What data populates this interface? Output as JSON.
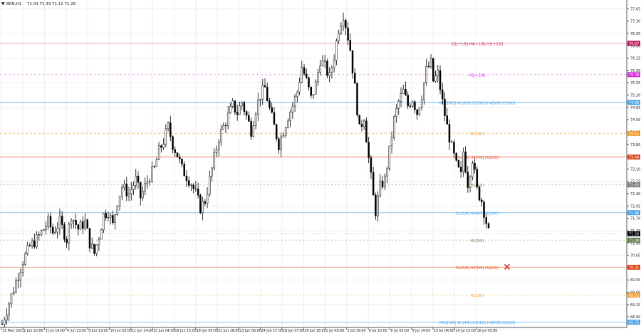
{
  "header": {
    "symbol_menu_glyph": "▼",
    "symbol_timeframe": "BRN,H1",
    "ohlc": "71.04 71.33 71.12 71.26"
  },
  "chart_data": {
    "type": "candlestick",
    "y_axis": {
      "min": 68.6,
      "max": 77.9,
      "ticks": [
        77.65,
        76.95,
        76.25,
        75.55,
        74.85,
        74.15,
        73.45,
        72.75,
        72.05,
        71.35,
        70.65,
        69.95,
        69.25,
        68.55
      ],
      "tick_labels": [
        "77.65",
        "76.95",
        "76.25",
        "75.55",
        "74.85",
        "74.15",
        "73.45",
        "72.75",
        "72.05",
        "71.35",
        "70.65",
        "69.95",
        "69.25",
        "68.55"
      ],
      "also_labels": [
        "77.30",
        "76.60",
        "75.90",
        "75.20",
        "74.50",
        "73.80",
        "73.10",
        "72.40",
        "71.70",
        "71.00",
        "70.30",
        "69.60",
        "68.90"
      ]
    },
    "x_axis": {
      "tick_labels": [
        "31 May 2021",
        "1 Jun 22:00",
        "3 Jun 14:00",
        "4 Jun 23:00",
        "8 Jun 13:00",
        "10 Jun 03:00",
        "11 Jun 14:00",
        "15 Jun 04:00",
        "16 Jun 15:00",
        "18 Jun 05:00",
        "21 Jun 16:00",
        "23 Jun 06:00",
        "24 Jun 17:00",
        "28 Jun 07:00",
        "29 Jun 18:00",
        "1 Jul 08:00",
        "2 Jul 19:00",
        "6 Jul 13:00",
        "8 Jul 03:00",
        "9 Jul 14:00",
        "13 Jul 04:00",
        "14 Jul 15:00",
        "16 Jul 05:00"
      ]
    },
    "price_path": [
      [
        0,
        68.7
      ],
      [
        3,
        69.3
      ],
      [
        6,
        69.9
      ],
      [
        9,
        70.5
      ],
      [
        12,
        70.9
      ],
      [
        15,
        71.1
      ],
      [
        18,
        71.4
      ],
      [
        20,
        71.6
      ],
      [
        22,
        71.3
      ],
      [
        25,
        71.6
      ],
      [
        28,
        71.1
      ],
      [
        30,
        71.8
      ],
      [
        33,
        71.4
      ],
      [
        36,
        71.6
      ],
      [
        38,
        71.0
      ],
      [
        40,
        70.7
      ],
      [
        42,
        71.2
      ],
      [
        44,
        71.8
      ],
      [
        46,
        71.9
      ],
      [
        48,
        71.5
      ],
      [
        50,
        72.2
      ],
      [
        52,
        72.6
      ],
      [
        55,
        72.4
      ],
      [
        58,
        72.8
      ],
      [
        60,
        72.3
      ],
      [
        62,
        72.6
      ],
      [
        64,
        72.9
      ],
      [
        66,
        73.1
      ],
      [
        68,
        73.6
      ],
      [
        70,
        73.9
      ],
      [
        72,
        74.3
      ],
      [
        74,
        73.8
      ],
      [
        76,
        73.5
      ],
      [
        78,
        73.1
      ],
      [
        80,
        72.9
      ],
      [
        82,
        72.7
      ],
      [
        84,
        72.4
      ],
      [
        86,
        72.0
      ],
      [
        88,
        72.2
      ],
      [
        90,
        72.8
      ],
      [
        92,
        73.4
      ],
      [
        94,
        74.0
      ],
      [
        96,
        74.3
      ],
      [
        98,
        74.6
      ],
      [
        100,
        74.9
      ],
      [
        102,
        74.7
      ],
      [
        104,
        75.0
      ],
      [
        106,
        74.6
      ],
      [
        108,
        74.2
      ],
      [
        110,
        74.8
      ],
      [
        112,
        75.2
      ],
      [
        114,
        75.4
      ],
      [
        116,
        74.8
      ],
      [
        118,
        74.3
      ],
      [
        120,
        73.8
      ],
      [
        122,
        74.2
      ],
      [
        124,
        74.6
      ],
      [
        126,
        74.9
      ],
      [
        128,
        75.3
      ],
      [
        130,
        76.0
      ],
      [
        132,
        75.6
      ],
      [
        134,
        75.1
      ],
      [
        136,
        75.5
      ],
      [
        138,
        76.2
      ],
      [
        140,
        76.0
      ],
      [
        142,
        75.7
      ],
      [
        144,
        76.3
      ],
      [
        146,
        77.1
      ],
      [
        148,
        77.5
      ],
      [
        149,
        77.2
      ],
      [
        151,
        76.5
      ],
      [
        153,
        75.4
      ],
      [
        155,
        74.2
      ],
      [
        157,
        74.6
      ],
      [
        159,
        73.4
      ],
      [
        161,
        72.3
      ],
      [
        162,
        71.9
      ],
      [
        164,
        72.6
      ],
      [
        166,
        72.8
      ],
      [
        168,
        73.6
      ],
      [
        170,
        74.5
      ],
      [
        172,
        75.0
      ],
      [
        174,
        75.3
      ],
      [
        176,
        74.9
      ],
      [
        178,
        75.1
      ],
      [
        180,
        74.7
      ],
      [
        182,
        75.2
      ],
      [
        184,
        75.9
      ],
      [
        186,
        76.1
      ],
      [
        187,
        75.6
      ],
      [
        189,
        75.8
      ],
      [
        191,
        75.0
      ],
      [
        193,
        74.3
      ],
      [
        195,
        73.7
      ],
      [
        197,
        73.2
      ],
      [
        199,
        72.9
      ],
      [
        200,
        73.6
      ],
      [
        202,
        72.7
      ],
      [
        204,
        73.4
      ],
      [
        206,
        72.5
      ],
      [
        208,
        72.2
      ],
      [
        210,
        71.6
      ],
      [
        211,
        71.3
      ]
    ],
    "levels": [
      {
        "price": 76.67,
        "color": "#f5a3b5",
        "dash": "none",
        "label": "D1[+1/8] H4[+1/8] H1[+2/8]",
        "label_color": "#c2185b",
        "badge": "76.67",
        "badge_color": "#c2185b"
      },
      {
        "price": 75.78,
        "color": "#e8a0ec",
        "dash": "3,3",
        "label": "H1[+1/8]",
        "label_color": "#d42adf",
        "badge": "75.78",
        "badge_color": "#d42adf"
      },
      {
        "price": 74.99,
        "color": "#6fb7ef",
        "dash": "none",
        "label": "MN1[8/8] W1[8/8] D1[8/8] H4[8/8] H1[8/8]",
        "label_color": "#4aa3e8",
        "badge": "74.99",
        "badge_color": "#4aa3e8"
      },
      {
        "price": 74.11,
        "color": "#f3c98a",
        "dash": "3,3",
        "label": "H1[7/8]",
        "label_color": "#f0a030",
        "badge": "74.11",
        "badge_color": "#f0a030"
      },
      {
        "price": 73.44,
        "color": "#f2866a",
        "dash": "none",
        "label": "D1[7/8] H4[7/8] H1[6/8]",
        "label_color": "#e2471d",
        "badge": "73.44",
        "badge_color": "#e2471d"
      },
      {
        "price": 72.65,
        "color": "#bcbcbc",
        "dash": "2,3",
        "label": "H1[5/8]",
        "label_color": "#5d8a4b",
        "badge": "72.65",
        "badge_color": "#7a7a7a"
      },
      {
        "price": 71.86,
        "color": "#8cc6f0",
        "dash": "none",
        "label": "D1[6/8] H4[6/8] H1[4/8]",
        "label_color": "#4aa3e8",
        "badge": "71.86",
        "badge_color": "#4aa3e8"
      },
      {
        "price": 71.08,
        "color": "#bdbdbd",
        "dash": "2,3",
        "label": "H1[3/8]",
        "label_color": "#5d8a4b",
        "badge": "71.08",
        "badge_color": "#5d7f4c"
      },
      {
        "price": 70.31,
        "color": "#f6a17c",
        "dash": "none",
        "label": "D1[5/8] H4[5/8] H1[2/8]",
        "label_color": "#e2471d",
        "badge": "70.31",
        "badge_color": "#e2471d"
      },
      {
        "price": 69.52,
        "color": "#f3d6a0",
        "dash": "3,3",
        "label": "H1[1/8]",
        "label_color": "#f0a030",
        "badge": "69.52",
        "badge_color": "#f0a030"
      },
      {
        "price": 68.75,
        "color": "#8cc6f0",
        "dash": "none",
        "label": "MN1[4/8] W1[4/8] D1[4/8] H4[4/8] H1[0/8]",
        "label_color": "#4aa3e8",
        "badge": "68.75",
        "badge_color": "#4aa3e8"
      }
    ],
    "current_price": {
      "price": 71.26,
      "badge": "71.26"
    },
    "marker": {
      "price": 70.32,
      "color": "#e53935"
    },
    "colors": {
      "candle": "#000000",
      "wick": "#000000",
      "grid": "#eeeeee",
      "axis": "#555555",
      "label": "#222222"
    }
  }
}
